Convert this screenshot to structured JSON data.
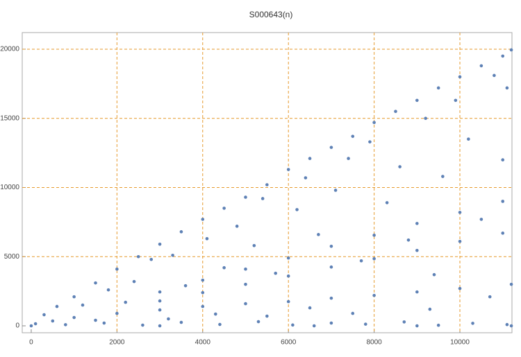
{
  "chart_data": {
    "type": "scatter",
    "title": "S000643(n)",
    "x": [
      0,
      300,
      600,
      1000,
      1500,
      2000,
      2500,
      3000,
      3500,
      4000,
      4500,
      5000,
      5500,
      6000,
      6500,
      7000,
      7500,
      8000,
      8500,
      9000,
      9500,
      10000,
      10500,
      11000,
      11200,
      500,
      1000,
      2000,
      3000,
      4000,
      5000,
      6000,
      7000,
      8000,
      9000,
      10000,
      11200,
      3000,
      4000,
      5000,
      6000,
      7000,
      8000,
      9000,
      10000,
      11000,
      3000,
      4000,
      5000,
      6000,
      7000,
      8000,
      9000,
      10000,
      11000,
      1200,
      1800,
      2400,
      2800,
      3300,
      3600,
      4100,
      4500,
      4800,
      5200,
      5400,
      5700,
      6200,
      6400,
      6700,
      7100,
      7400,
      7700,
      7900,
      8300,
      8600,
      8800,
      9200,
      9400,
      9600,
      9900,
      10200,
      10500,
      10800,
      11000,
      11100,
      10700,
      9300,
      7500,
      6500,
      5500,
      4300,
      3200,
      2200,
      1500,
      100,
      800,
      1700,
      2600,
      3500,
      4400,
      5300,
      6100,
      7000,
      7800,
      8700,
      9500,
      10300,
      11100,
      11200,
      6600,
      3000,
      9000
    ],
    "y": [
      0,
      800,
      1400,
      2100,
      3100,
      4100,
      5000,
      5900,
      6800,
      7700,
      8500,
      9300,
      10200,
      11300,
      12100,
      12900,
      13700,
      14700,
      15500,
      16300,
      17200,
      18000,
      18800,
      19500,
      19950,
      350,
      600,
      900,
      1150,
      1400,
      1600,
      1750,
      2000,
      2200,
      2450,
      2700,
      3000,
      2450,
      3300,
      4100,
      4900,
      5750,
      6550,
      7400,
      8200,
      9000,
      1800,
      2400,
      3000,
      3600,
      4250,
      4850,
      5450,
      6100,
      6700,
      1500,
      2600,
      3200,
      4800,
      5100,
      2900,
      6300,
      4200,
      7200,
      5800,
      9200,
      3800,
      8400,
      10700,
      6600,
      9800,
      12100,
      4700,
      13300,
      8900,
      11500,
      6200,
      15000,
      3700,
      10800,
      16300,
      13500,
      7700,
      18100,
      12000,
      17200,
      2100,
      1200,
      900,
      1300,
      700,
      850,
      500,
      1700,
      400,
      150,
      80,
      200,
      50,
      250,
      100,
      300,
      60,
      200,
      120,
      280,
      40,
      180,
      90,
      0,
      0,
      0,
      0
    ],
    "color": "#5e81b5",
    "xlim": [
      -210,
      11215
    ],
    "ylim": [
      -500,
      21200
    ],
    "xticks": [
      0,
      2000,
      4000,
      6000,
      8000,
      10000
    ],
    "yticks": [
      0,
      5000,
      10000,
      15000,
      20000
    ],
    "grid": true,
    "grid_color": "#e69a2c"
  }
}
